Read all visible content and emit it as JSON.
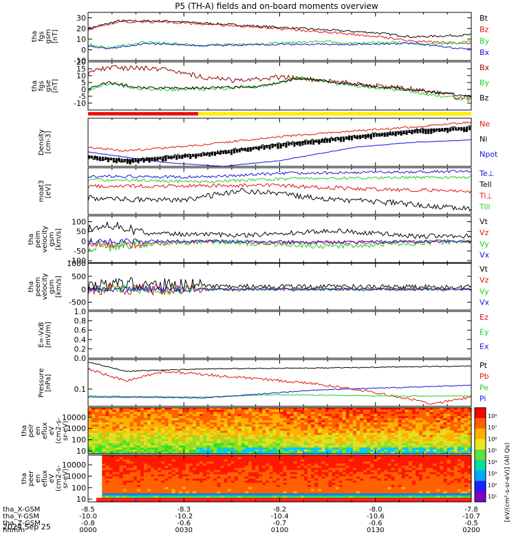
{
  "title": "P5 (TH-A) fields and on-board moments overview",
  "date": "2024 Sep 25",
  "colors": {
    "black": "#000000",
    "red": "#e01010",
    "green": "#22cc22",
    "blue": "#1010dd",
    "darkred": "#8b0000",
    "bar_red": "#ee1111",
    "bar_yellow": "#ffee00"
  },
  "chart_data": [
    {
      "type": "line",
      "ylabel": [
        "tha",
        "fgs",
        "gsm",
        "[nT]"
      ],
      "ylim": [
        -10,
        35
      ],
      "yticks": [
        -10,
        0,
        10,
        20,
        30
      ],
      "ytick_labels": [
        "-10",
        "0",
        "10",
        "20",
        "30"
      ],
      "series": [
        {
          "name": "Bt",
          "color": "black",
          "noise": 1.0,
          "points": [
            [
              0,
              20
            ],
            [
              0.08,
              27
            ],
            [
              0.2,
              27
            ],
            [
              0.3,
              25
            ],
            [
              0.45,
              22
            ],
            [
              0.6,
              19
            ],
            [
              0.75,
              16
            ],
            [
              0.85,
              12
            ],
            [
              1,
              14
            ]
          ]
        },
        {
          "name": "Bz",
          "color": "red",
          "noise": 1.0,
          "points": [
            [
              0,
              19
            ],
            [
              0.08,
              26
            ],
            [
              0.2,
              26
            ],
            [
              0.3,
              24
            ],
            [
              0.45,
              21
            ],
            [
              0.6,
              17
            ],
            [
              0.75,
              13
            ],
            [
              0.85,
              8
            ],
            [
              1,
              6
            ]
          ]
        },
        {
          "name": "By",
          "color": "green",
          "noise": 1.3,
          "points": [
            [
              0,
              5
            ],
            [
              0.05,
              2
            ],
            [
              0.15,
              7
            ],
            [
              0.3,
              4
            ],
            [
              0.5,
              6
            ],
            [
              0.6,
              8
            ],
            [
              0.7,
              6
            ],
            [
              0.8,
              7
            ],
            [
              0.9,
              5
            ],
            [
              1,
              8
            ]
          ]
        },
        {
          "name": "Bx",
          "color": "blue",
          "noise": 0.8,
          "points": [
            [
              0,
              4
            ],
            [
              0.05,
              1
            ],
            [
              0.15,
              6
            ],
            [
              0.3,
              4
            ],
            [
              0.5,
              5
            ],
            [
              0.7,
              5
            ],
            [
              0.85,
              6
            ],
            [
              0.95,
              2
            ],
            [
              1,
              1
            ]
          ]
        }
      ]
    },
    {
      "type": "line",
      "ylabel": [
        "tha",
        "fgs",
        "gse",
        "[nT]"
      ],
      "ylim": [
        -15,
        20
      ],
      "yticks": [
        -10,
        -5,
        0,
        5,
        10,
        15,
        20
      ],
      "ytick_labels": [
        "-10",
        "-5",
        "0",
        "5",
        "10",
        "15",
        "20"
      ],
      "series": [
        {
          "name": "Bx",
          "color": "darkred",
          "noise": 1.8,
          "points": [
            [
              0,
              12
            ],
            [
              0.05,
              16
            ],
            [
              0.2,
              15
            ],
            [
              0.3,
              9
            ],
            [
              0.4,
              6
            ],
            [
              0.5,
              9
            ],
            [
              0.55,
              8
            ],
            [
              0.7,
              4
            ],
            [
              0.85,
              0
            ],
            [
              1,
              -7
            ]
          ]
        },
        {
          "name": "By",
          "color": "green",
          "noise": 1.2,
          "points": [
            [
              0,
              -1
            ],
            [
              0.05,
              4
            ],
            [
              0.15,
              0
            ],
            [
              0.3,
              0
            ],
            [
              0.45,
              2
            ],
            [
              0.55,
              9
            ],
            [
              0.65,
              4
            ],
            [
              0.8,
              0
            ],
            [
              0.9,
              -4
            ],
            [
              1,
              -8
            ]
          ]
        },
        {
          "name": "Bz",
          "color": "black",
          "noise": 1.0,
          "points": [
            [
              0,
              1
            ],
            [
              0.05,
              5
            ],
            [
              0.15,
              1
            ],
            [
              0.3,
              1
            ],
            [
              0.45,
              2
            ],
            [
              0.55,
              8
            ],
            [
              0.65,
              5
            ],
            [
              0.8,
              1
            ],
            [
              0.9,
              -2
            ],
            [
              1,
              -5
            ]
          ]
        }
      ]
    },
    {
      "type": "line",
      "ylabel": [
        "Density",
        "[cm-3]"
      ],
      "ylim": [
        0,
        1
      ],
      "series": [
        {
          "name": "Ne",
          "color": "red",
          "noise": 0.02,
          "points": [
            [
              0,
              0.4
            ],
            [
              0.1,
              0.32
            ],
            [
              0.3,
              0.45
            ],
            [
              0.5,
              0.62
            ],
            [
              0.7,
              0.74
            ],
            [
              0.85,
              0.82
            ],
            [
              1,
              0.92
            ]
          ]
        },
        {
          "name": "Ni",
          "color": "black",
          "noise": 0.05,
          "points": [
            [
              0,
              0.2
            ],
            [
              0.1,
              0.12
            ],
            [
              0.3,
              0.25
            ],
            [
              0.5,
              0.45
            ],
            [
              0.7,
              0.62
            ],
            [
              0.85,
              0.74
            ],
            [
              1,
              0.8
            ]
          ]
        },
        {
          "name": "Npot",
          "color": "blue",
          "noise": 0.005,
          "points": [
            [
              0,
              0.3
            ],
            [
              0.2,
              0.08
            ],
            [
              0.35,
              0
            ],
            [
              0.5,
              0.12
            ],
            [
              0.7,
              0.4
            ],
            [
              0.85,
              0.5
            ],
            [
              1,
              0.55
            ]
          ]
        }
      ]
    },
    {
      "type": "line",
      "ylabel": [
        "moat3",
        "[eV]"
      ],
      "ylim": [
        0,
        1
      ],
      "series": [
        {
          "name": "Te⊥",
          "color": "blue",
          "noise": 0.03,
          "points": [
            [
              0,
              0.82
            ],
            [
              0.3,
              0.8
            ],
            [
              0.5,
              0.88
            ],
            [
              0.7,
              0.9
            ],
            [
              1,
              0.93
            ]
          ]
        },
        {
          "name": "Tell",
          "color": "black",
          "noise": 0.06,
          "points": [
            [
              0,
              0.35
            ],
            [
              0.25,
              0.3
            ],
            [
              0.4,
              0.52
            ],
            [
              0.6,
              0.35
            ],
            [
              0.8,
              0.25
            ],
            [
              1,
              0.12
            ]
          ]
        },
        {
          "name": "Ti⊥",
          "color": "red",
          "noise": 0.04,
          "points": [
            [
              0,
              0.6
            ],
            [
              0.3,
              0.62
            ],
            [
              0.5,
              0.62
            ],
            [
              0.7,
              0.55
            ],
            [
              1,
              0.5
            ]
          ]
        },
        {
          "name": "Till",
          "color": "green",
          "noise": 0.03,
          "points": [
            [
              0,
              0.75
            ],
            [
              0.3,
              0.7
            ],
            [
              0.5,
              0.76
            ],
            [
              0.7,
              0.78
            ],
            [
              1,
              0.8
            ]
          ]
        }
      ]
    },
    {
      "type": "line",
      "ylabel": [
        "tha",
        "peim",
        "velocity",
        "gsm",
        "[km/s]"
      ],
      "ylim": [
        -110,
        130
      ],
      "yticks": [
        -100,
        -50,
        0,
        50,
        100
      ],
      "ytick_labels": [
        "-100",
        "-50",
        "0",
        "50",
        "100"
      ],
      "series": [
        {
          "name": "Vt",
          "color": "black",
          "noise": 12,
          "points": [
            [
              0,
              60
            ],
            [
              0.05,
              90
            ],
            [
              0.15,
              40
            ],
            [
              0.4,
              30
            ],
            [
              0.65,
              55
            ],
            [
              0.85,
              25
            ],
            [
              1,
              30
            ]
          ]
        },
        {
          "name": "Vz",
          "color": "red",
          "noise": 10,
          "points": [
            [
              0,
              -10
            ],
            [
              0.1,
              -20
            ],
            [
              0.3,
              0
            ],
            [
              0.5,
              -10
            ],
            [
              0.8,
              -5
            ],
            [
              1,
              0
            ]
          ]
        },
        {
          "name": "Vy",
          "color": "green",
          "noise": 14,
          "points": [
            [
              0,
              -30
            ],
            [
              0.1,
              -20
            ],
            [
              0.3,
              0
            ],
            [
              0.5,
              -15
            ],
            [
              0.65,
              -30
            ],
            [
              0.8,
              -10
            ],
            [
              1,
              0
            ]
          ]
        },
        {
          "name": "Vx",
          "color": "blue",
          "noise": 8,
          "points": [
            [
              0,
              0
            ],
            [
              0.3,
              0
            ],
            [
              0.6,
              -5
            ],
            [
              1,
              0
            ]
          ]
        }
      ]
    },
    {
      "type": "line",
      "ylabel": [
        "tha",
        "peem",
        "velocity",
        "gsm",
        "[km/s]"
      ],
      "ylim": [
        -800,
        1000
      ],
      "yticks": [
        -500,
        0,
        500,
        1000
      ],
      "ytick_labels": [
        "-500",
        "0",
        "500",
        "1000"
      ],
      "series": [
        {
          "name": "Vt",
          "color": "black",
          "noise": 90,
          "points": [
            [
              0,
              150
            ],
            [
              0.1,
              200
            ],
            [
              0.3,
              120
            ],
            [
              0.6,
              100
            ],
            [
              1,
              80
            ]
          ]
        },
        {
          "name": "Vz",
          "color": "red",
          "noise": 70,
          "points": [
            [
              0,
              0
            ],
            [
              0.1,
              -20
            ],
            [
              0.3,
              0
            ],
            [
              1,
              0
            ]
          ]
        },
        {
          "name": "Vy",
          "color": "green",
          "noise": 55,
          "points": [
            [
              0,
              0
            ],
            [
              0.3,
              -10
            ],
            [
              1,
              0
            ]
          ]
        },
        {
          "name": "Vx",
          "color": "blue",
          "noise": 40,
          "points": [
            [
              0,
              0
            ],
            [
              1,
              0
            ]
          ]
        }
      ]
    },
    {
      "type": "line",
      "ylabel": [
        "E=-VxB",
        "[mV/m]"
      ],
      "ylim": [
        0,
        1
      ],
      "yticks": [
        0,
        0.2,
        0.4,
        0.6,
        0.8,
        1.0
      ],
      "ytick_labels": [
        "0.0",
        "0.2",
        "0.4",
        "0.6",
        "0.8",
        "1.0"
      ],
      "series": [
        {
          "name": "Ez",
          "color": "red",
          "points": []
        },
        {
          "name": "Ey",
          "color": "green",
          "points": []
        },
        {
          "name": "Ex",
          "color": "blue",
          "points": []
        }
      ]
    },
    {
      "type": "line",
      "ylabel": [
        "Pressure",
        "[nPa]"
      ],
      "ylim": [
        0,
        1
      ],
      "ytick_labels": [
        "0.1"
      ],
      "series": [
        {
          "name": "Pt",
          "color": "black",
          "noise": 0.01,
          "points": [
            [
              0,
              0.95
            ],
            [
              0.1,
              0.75
            ],
            [
              0.3,
              0.8
            ],
            [
              0.6,
              0.82
            ],
            [
              1,
              0.86
            ]
          ]
        },
        {
          "name": "Pb",
          "color": "red",
          "noise": 0.03,
          "points": [
            [
              0,
              0.8
            ],
            [
              0.1,
              0.55
            ],
            [
              0.2,
              0.75
            ],
            [
              0.4,
              0.62
            ],
            [
              0.6,
              0.48
            ],
            [
              0.75,
              0.3
            ],
            [
              0.9,
              0.05
            ],
            [
              1,
              0.2
            ]
          ]
        },
        {
          "name": "Pe",
          "color": "green",
          "noise": 0.01,
          "points": [
            [
              0,
              0.22
            ],
            [
              0.3,
              0.2
            ],
            [
              0.5,
              0.25
            ],
            [
              0.8,
              0.22
            ],
            [
              1,
              0.22
            ]
          ]
        },
        {
          "name": "Pi",
          "color": "blue",
          "noise": 0.01,
          "points": [
            [
              0,
              0.2
            ],
            [
              0.3,
              0.18
            ],
            [
              0.6,
              0.35
            ],
            [
              0.8,
              0.4
            ],
            [
              1,
              0.45
            ]
          ]
        }
      ]
    },
    {
      "type": "heatmap",
      "ylabel": [
        "tha",
        "peir",
        "en",
        "eflux",
        "eV",
        "(cm2-s-",
        "sr-eV)"
      ],
      "ytick_labels": [
        "10",
        "100",
        "1000",
        "10000"
      ]
    },
    {
      "type": "heatmap",
      "ylabel": [
        "tha",
        "peer",
        "en",
        "eflux",
        "eV",
        "(cm2-s-",
        "sr-eV)"
      ],
      "ytick_labels": [
        "10",
        "100",
        "1000",
        "10000"
      ]
    }
  ],
  "colorbar": {
    "tick_labels": [
      "10⁸",
      "10⁷",
      "10⁶",
      "10⁵",
      "10⁴",
      "10³",
      "10²",
      "10¹"
    ],
    "label": "[eV/(cm²-s-sr-eV)] (All Qs)"
  },
  "x_axis": {
    "row_labels": [
      "tha_X-GSM",
      "tha_Y-GSM",
      "tha_Z-GSM",
      "hhmm"
    ],
    "ticks": [
      {
        "x": 0,
        "values": [
          "-8.5",
          "-10.0",
          "-0.8",
          "0000"
        ]
      },
      {
        "x": 0.25,
        "values": [
          "-8.3",
          "-10.2",
          "-0.6",
          "0030"
        ]
      },
      {
        "x": 0.5,
        "values": [
          "-8.2",
          "-10.4",
          "-0.7",
          "0100"
        ]
      },
      {
        "x": 0.75,
        "values": [
          "-8.0",
          "-10.6",
          "-0.6",
          "0130"
        ]
      },
      {
        "x": 1,
        "values": [
          "-7.8",
          "-10.7",
          "-0.5",
          "0200"
        ]
      }
    ]
  }
}
